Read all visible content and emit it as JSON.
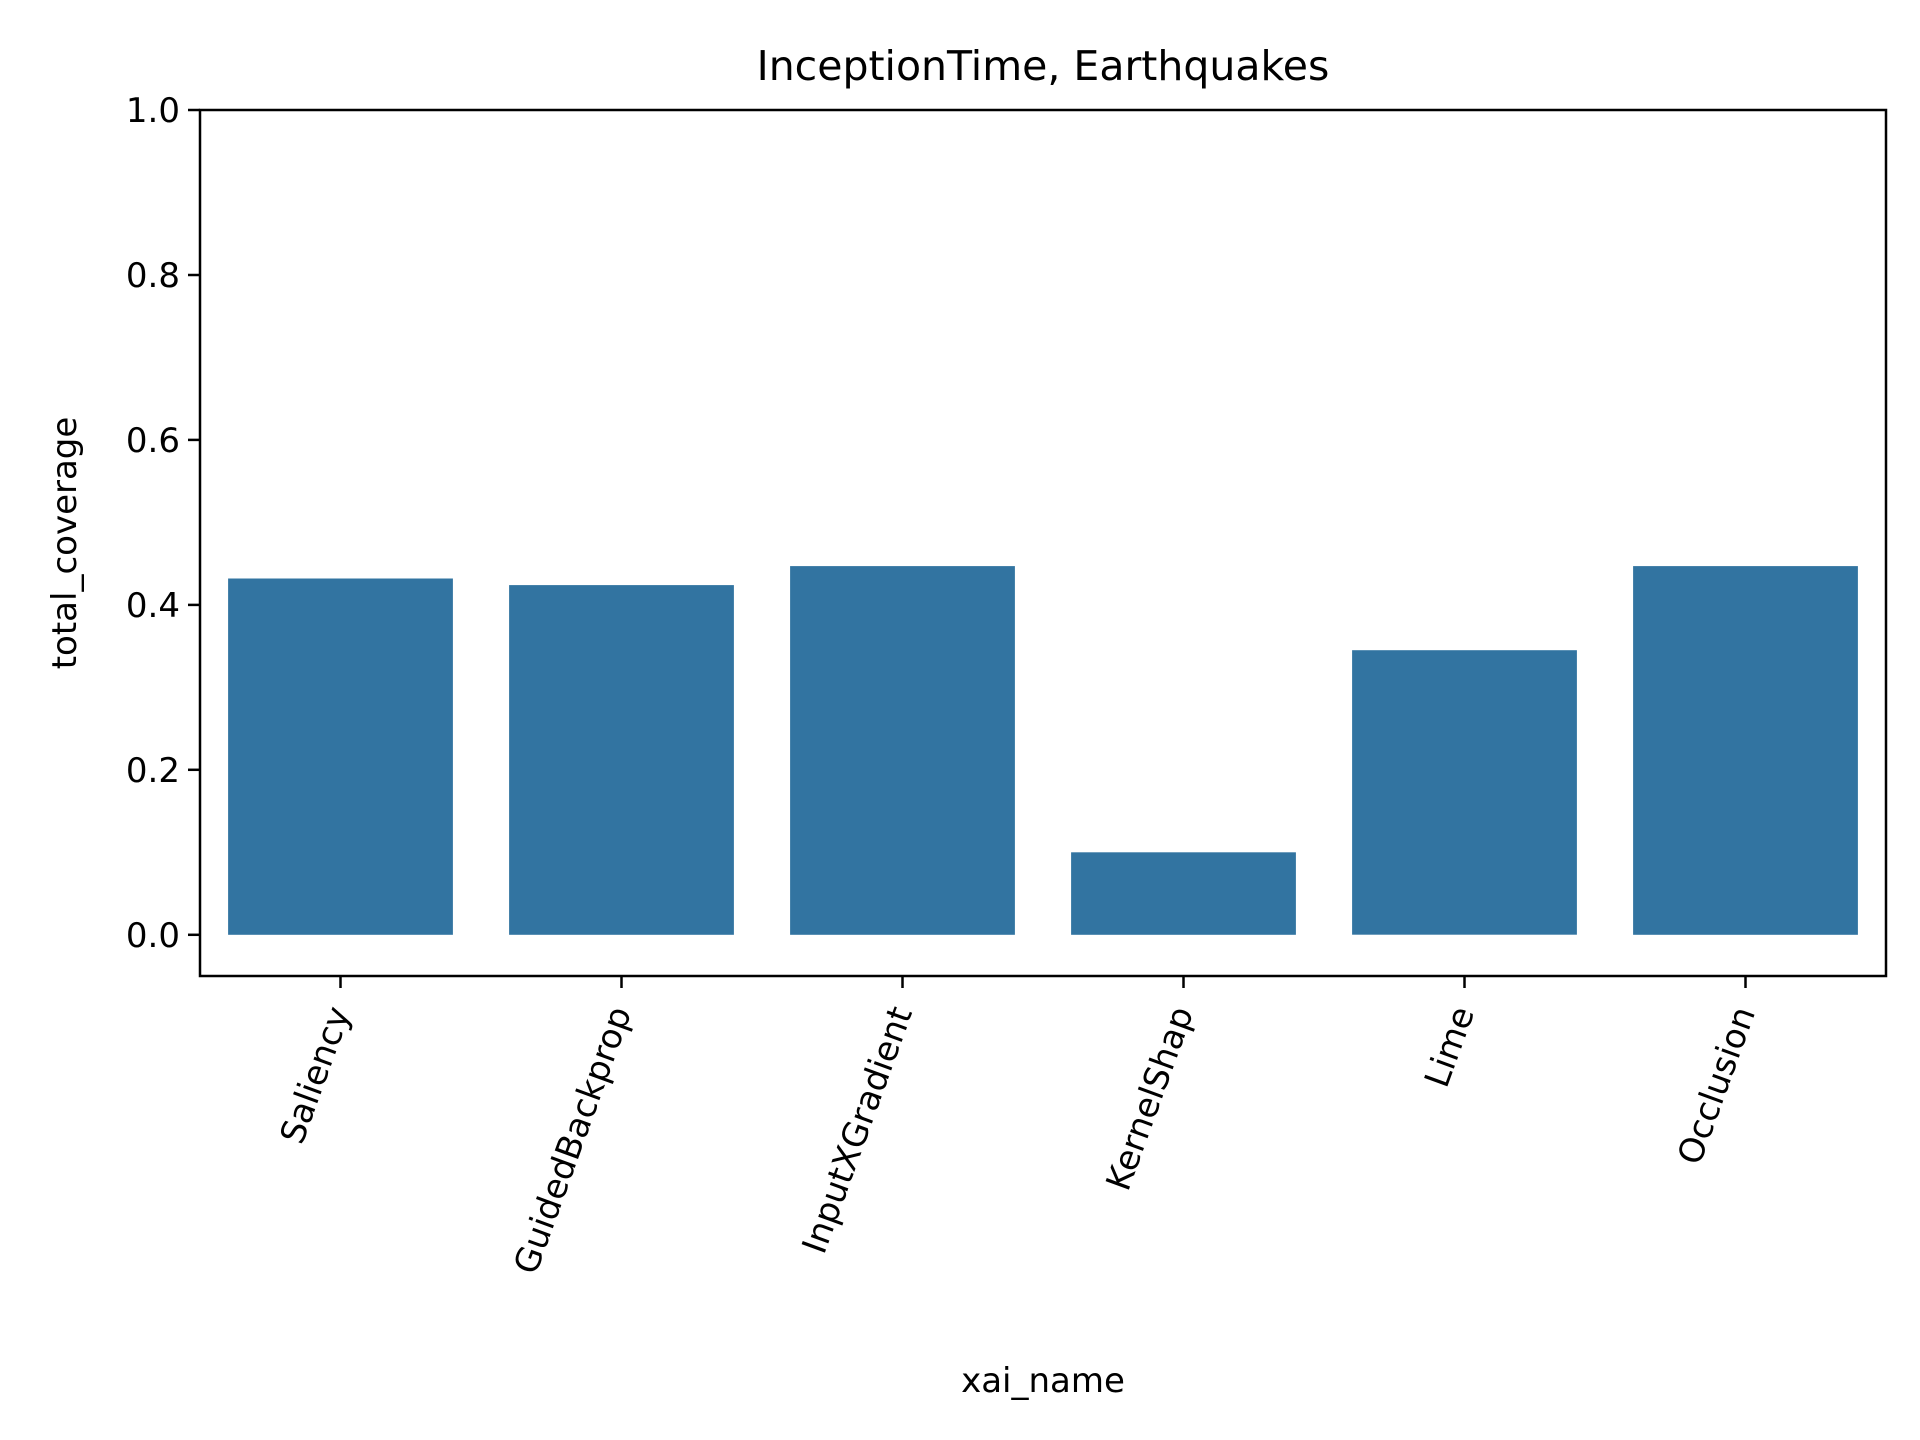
{
  "chart_data": {
    "type": "bar",
    "title": "InceptionTime, Earthquakes",
    "xlabel": "xai_name",
    "ylabel": "total_coverage",
    "categories": [
      "Saliency",
      "GuidedBackprop",
      "InputXGradient",
      "KernelShap",
      "Lime",
      "Occlusion"
    ],
    "values": [
      0.432,
      0.424,
      0.447,
      0.1,
      0.345,
      0.447
    ],
    "ylim": [
      -0.05,
      1.0
    ],
    "yticks": [
      0.0,
      0.2,
      0.4,
      0.6,
      0.8,
      1.0
    ],
    "ytick_labels": [
      "0.0",
      "0.2",
      "0.4",
      "0.6",
      "0.8",
      "1.0"
    ],
    "x_tick_rotation_deg": 70,
    "grid": false,
    "legend": "none",
    "bar_color": "#3274a1"
  }
}
